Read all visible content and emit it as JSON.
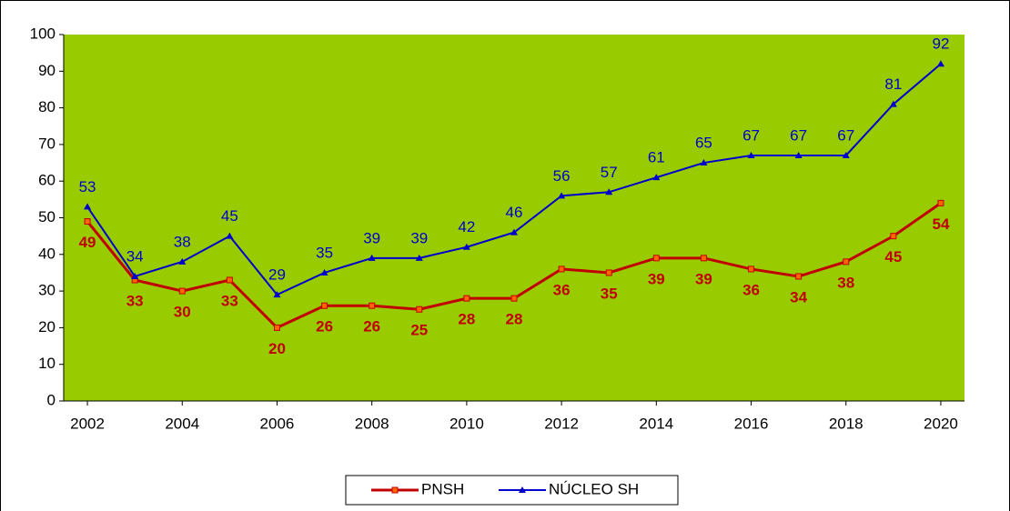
{
  "chart_data": {
    "type": "line",
    "x": [
      2002,
      2003,
      2004,
      2005,
      2006,
      2007,
      2008,
      2009,
      2010,
      2011,
      2012,
      2013,
      2014,
      2015,
      2016,
      2017,
      2018,
      2019,
      2020
    ],
    "xlim": [
      2001.5,
      2020.5
    ],
    "xticks": [
      2002,
      2004,
      2006,
      2008,
      2010,
      2012,
      2014,
      2016,
      2018,
      2020
    ],
    "ylim": [
      0,
      100
    ],
    "yticks": [
      0,
      10,
      20,
      30,
      40,
      50,
      60,
      70,
      80,
      90,
      100
    ],
    "plot_background": "#99cc00",
    "legend": "bottom",
    "series": [
      {
        "name": "PNSH",
        "color": "#c00000",
        "marker_color": "#ff6600",
        "marker": "square",
        "values": [
          49,
          33,
          30,
          33,
          20,
          26,
          26,
          25,
          28,
          28,
          36,
          35,
          39,
          39,
          36,
          34,
          38,
          45,
          54
        ]
      },
      {
        "name": "NÚCLEO SH",
        "color": "#0000cc",
        "marker_color": "#0000cc",
        "marker": "triangle",
        "values": [
          53,
          34,
          38,
          45,
          29,
          35,
          39,
          39,
          42,
          46,
          56,
          57,
          61,
          65,
          67,
          67,
          67,
          81,
          92
        ]
      }
    ]
  }
}
